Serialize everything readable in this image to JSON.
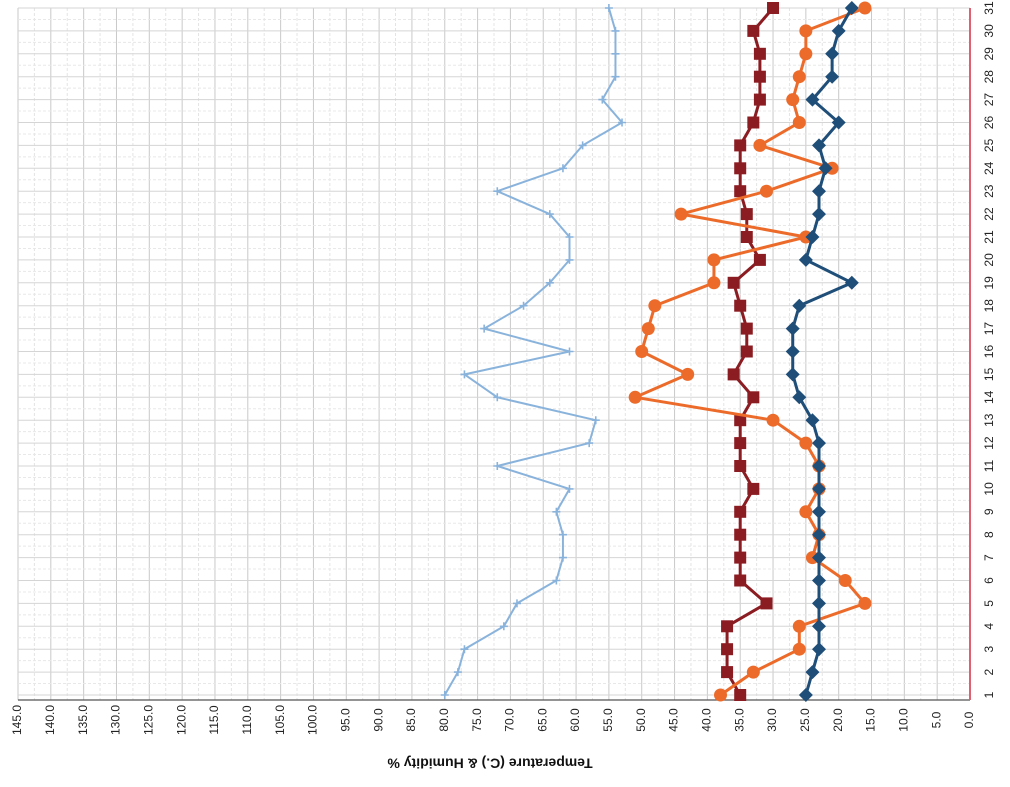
{
  "chart_data": {
    "type": "line",
    "orientation": "rotated-180",
    "ylabel": "Temperature (C.) & Humidity %",
    "xlabel": "",
    "ylim": [
      0,
      145
    ],
    "y_ticks": [
      "0.0",
      "5.0",
      "10.0",
      "15.0",
      "20.0",
      "25.0",
      "30.0",
      "35.0",
      "40.0",
      "45.0",
      "50.0",
      "55.0",
      "60.0",
      "65.0",
      "70.0",
      "75.0",
      "80.0",
      "85.0",
      "90.0",
      "95.0",
      "100.0",
      "105.0",
      "110.0",
      "115.0",
      "120.0",
      "125.0",
      "130.0",
      "135.0",
      "140.0",
      "145.0"
    ],
    "categories": [
      "1",
      "2",
      "3",
      "4",
      "5",
      "6",
      "7",
      "8",
      "9",
      "10",
      "11",
      "12",
      "13",
      "14",
      "15",
      "16",
      "17",
      "18",
      "19",
      "20",
      "21",
      "22",
      "23",
      "24",
      "25",
      "26",
      "27",
      "28",
      "29",
      "30",
      "31"
    ],
    "grid": true,
    "series": [
      {
        "color": "#8ab3dc",
        "marker": "plus",
        "values": [
          80,
          78,
          77,
          71,
          69,
          63,
          62,
          62,
          63,
          61,
          72,
          58,
          57,
          72,
          77,
          61,
          74,
          68,
          64,
          61,
          61,
          64,
          72,
          62,
          59,
          53,
          56,
          54,
          54,
          54,
          55
        ]
      },
      {
        "color": "#8b1c22",
        "marker": "square",
        "values": [
          35,
          37,
          37,
          37,
          31,
          35,
          35,
          35,
          35,
          33,
          35,
          35,
          35,
          33,
          36,
          34,
          34,
          35,
          36,
          32,
          34,
          34,
          35,
          35,
          35,
          33,
          32,
          32,
          32,
          33,
          30
        ]
      },
      {
        "color": "#ec6b2a",
        "marker": "circle",
        "values": [
          38,
          33,
          26,
          26,
          16,
          19,
          24,
          23,
          25,
          23,
          23,
          25,
          30,
          51,
          43,
          50,
          49,
          48,
          39,
          39,
          25,
          44,
          31,
          21,
          32,
          26,
          27,
          26,
          25,
          25,
          16
        ]
      },
      {
        "color": "#1f4e79",
        "marker": "diamond",
        "values": [
          25,
          24,
          23,
          23,
          23,
          23,
          23,
          23,
          23,
          23,
          23,
          23,
          24,
          26,
          27,
          27,
          27,
          26,
          18,
          25,
          24,
          23,
          23,
          22,
          23,
          20,
          24,
          21,
          21,
          20,
          18
        ]
      }
    ]
  }
}
